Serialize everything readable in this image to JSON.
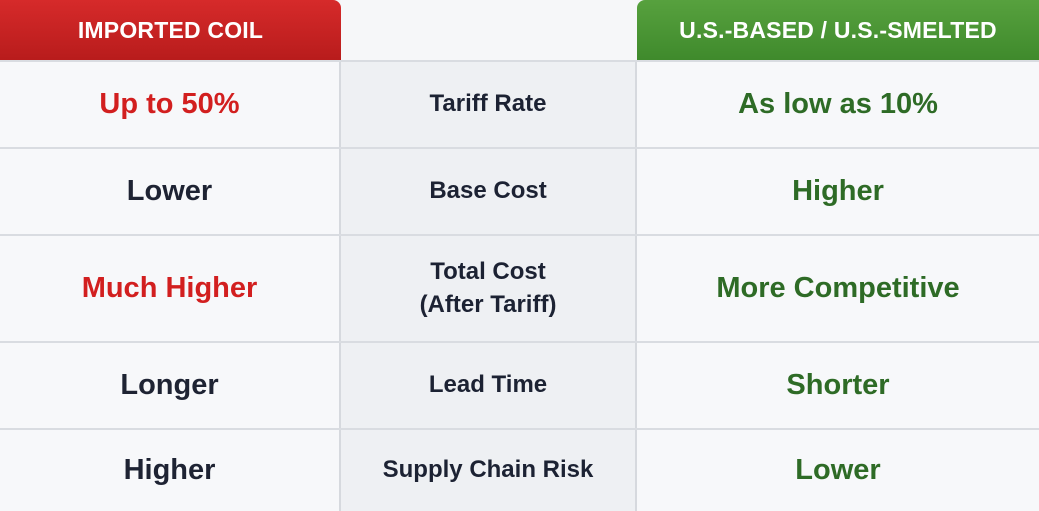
{
  "headers": {
    "left": "IMPORTED COIL",
    "right": "U.S.-BASED / U.S.-SMELTED"
  },
  "rows": [
    {
      "left": "Up to 50%",
      "left_style": "red",
      "middle_line1": "Tariff Rate",
      "middle_line2": "",
      "right": "As low as 10%"
    },
    {
      "left": "Lower",
      "left_style": "dark",
      "middle_line1": "Base Cost",
      "middle_line2": "",
      "right": "Higher"
    },
    {
      "left": "Much Higher",
      "left_style": "red",
      "middle_line1": "Total Cost",
      "middle_line2": "(After Tariff)",
      "right": "More Competitive"
    },
    {
      "left": "Longer",
      "left_style": "dark",
      "middle_line1": "Lead Time",
      "middle_line2": "",
      "right": "Shorter"
    },
    {
      "left": "Higher",
      "left_style": "dark",
      "middle_line1": "Supply Chain Risk",
      "middle_line2": "",
      "right": "Lower"
    }
  ],
  "colors": {
    "imported_header": "#c92424",
    "us_header": "#4a952f",
    "red_text": "#d21f1f",
    "green_text": "#2e6b26",
    "dark_text": "#1e2333"
  }
}
